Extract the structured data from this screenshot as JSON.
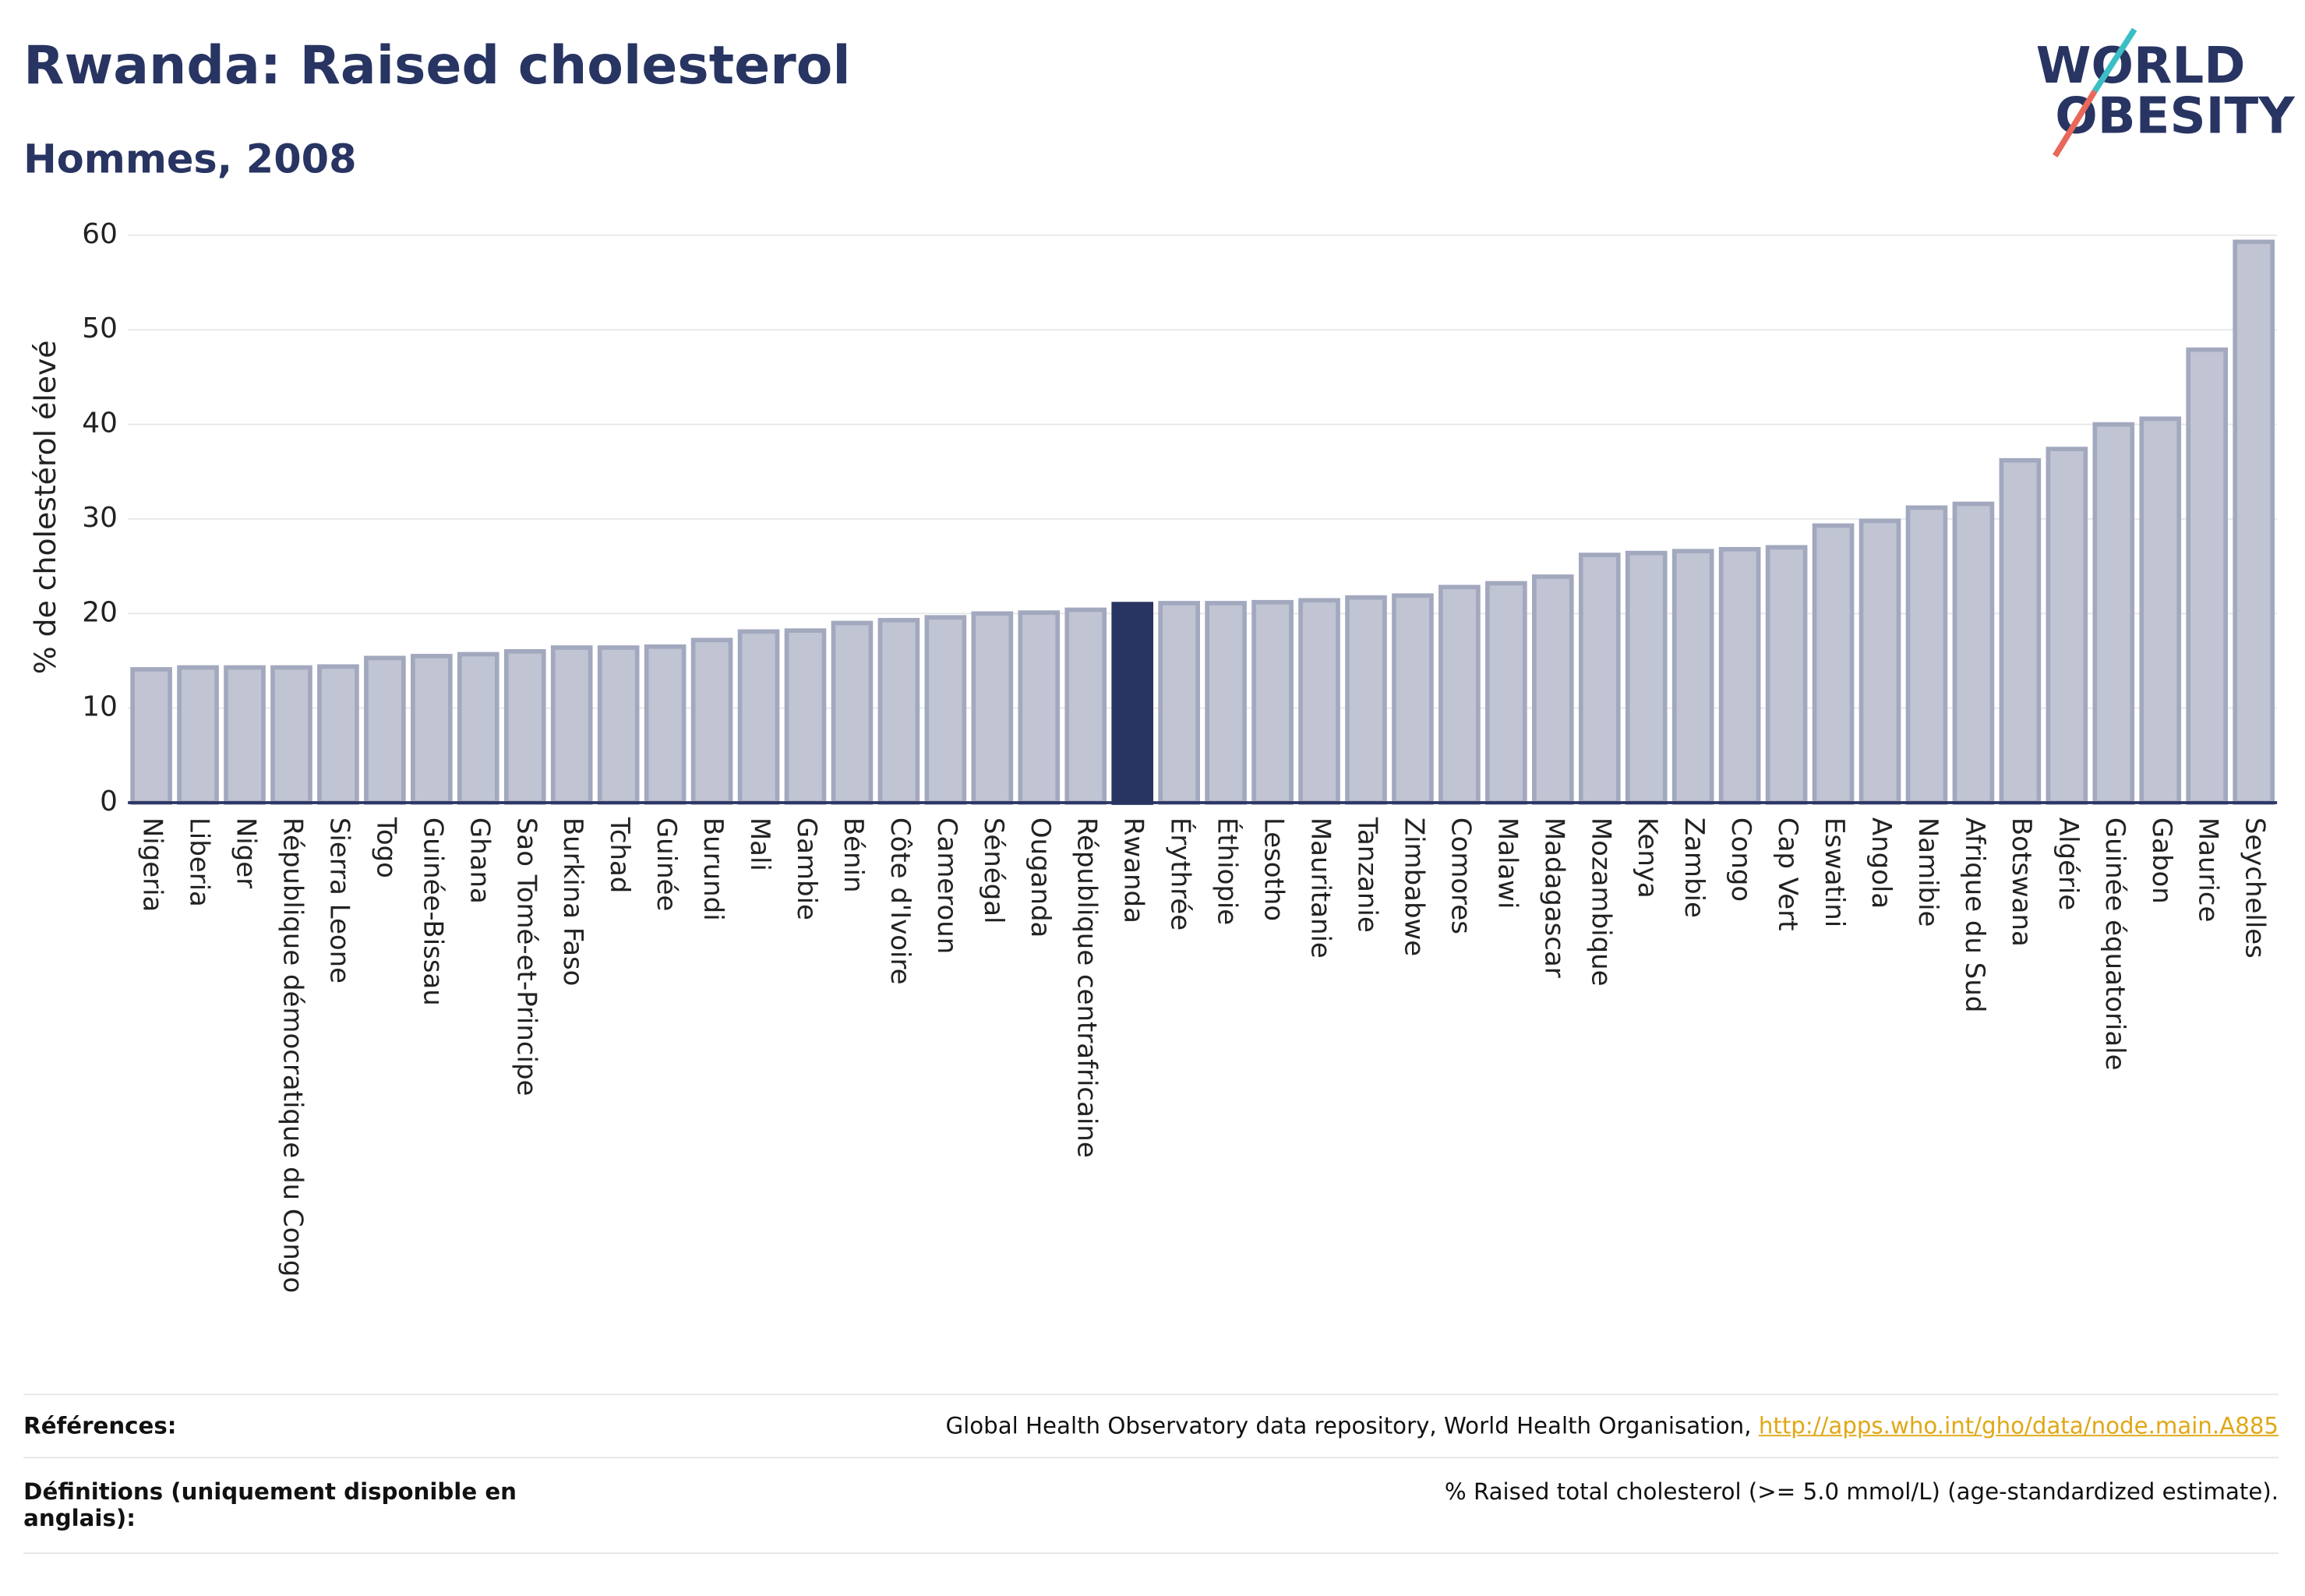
{
  "chart_data": {
    "type": "bar",
    "title": "Rwanda: Raised cholesterol",
    "subtitle": "Hommes, 2008",
    "y_label": "% de cholestérol élevé",
    "categories": [
      "Nigeria",
      "Liberia",
      "Niger",
      "République démocratique du Congo",
      "Sierra Leone",
      "Togo",
      "Guinée-Bissau",
      "Ghana",
      "Sao Tomé-et-Principe",
      "Burkina Faso",
      "Tchad",
      "Guinée",
      "Burundi",
      "Mali",
      "Gambie",
      "Bénin",
      "Côte d'Ivoire",
      "Cameroun",
      "Sénégal",
      "Ouganda",
      "République centrafricaine",
      "Rwanda",
      "Érythrée",
      "Éthiopie",
      "Lesotho",
      "Mauritanie",
      "Tanzanie",
      "Zimbabwe",
      "Comores",
      "Malawi",
      "Madagascar",
      "Mozambique",
      "Kenya",
      "Zambie",
      "Congo",
      "Cap Vert",
      "Eswatini",
      "Angola",
      "Namibie",
      "Afrique du Sud",
      "Botswana",
      "Algérie",
      "Guinée équatoriale",
      "Gabon",
      "Maurice",
      "Seychelles"
    ],
    "values": [
      14.1,
      14.3,
      14.3,
      14.3,
      14.4,
      15.3,
      15.5,
      15.7,
      16.0,
      16.4,
      16.4,
      16.5,
      17.2,
      18.1,
      18.2,
      19.0,
      19.3,
      19.6,
      20.0,
      20.1,
      20.4,
      21.0,
      21.1,
      21.1,
      21.2,
      21.4,
      21.7,
      21.9,
      22.8,
      23.2,
      23.9,
      26.2,
      26.4,
      26.6,
      26.8,
      27.0,
      29.3,
      29.8,
      31.2,
      31.6,
      36.2,
      37.4,
      40.0,
      40.6,
      47.9,
      59.3
    ],
    "color": "#c0c4d3",
    "border_color": "#a2a8be",
    "highlight_color": "#283462",
    "highlight_index": 21,
    "ylim": [
      0,
      60
    ],
    "yticks": [
      0,
      10,
      20,
      30,
      40,
      50,
      60
    ],
    "grid": true
  },
  "logo": {
    "line1": "WORLD",
    "line2": "OBESITY"
  },
  "footer": {
    "references_label": "Références:",
    "references_text": "Global Health Observatory data repository, World Health Organisation,",
    "references_link": "http://apps.who.int/gho/data/node.main.A885",
    "definitions_label": "Définitions (uniquement disponible en anglais):",
    "definitions_text": "% Raised total cholesterol (>= 5.0 mmol/L) (age-standardized estimate)."
  }
}
